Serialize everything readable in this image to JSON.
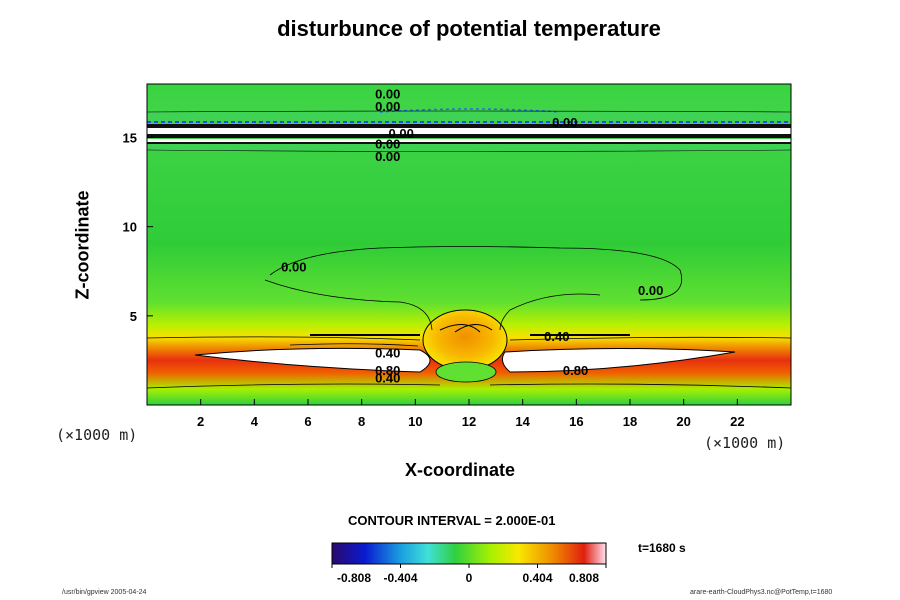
{
  "title": "disturbunce of potential temperature",
  "chart_data": {
    "type": "heatmap",
    "title": "disturbunce of potential temperature",
    "xlabel": "X-coordinate",
    "ylabel": "Z-coordinate",
    "x_unit": "(×1000 m)",
    "z_unit": "(×1000 m)",
    "xlim": [
      0,
      24
    ],
    "ylim": [
      0,
      18
    ],
    "x_ticks": [
      2,
      4,
      6,
      8,
      10,
      12,
      14,
      16,
      18,
      20,
      22
    ],
    "y_ticks": [
      5,
      10,
      15
    ],
    "contour_interval": "CONTOUR INTERVAL = 2.000E-01",
    "contour_labels": [
      {
        "x": 8.5,
        "z": 17.4,
        "text": "0.00"
      },
      {
        "x": 8.5,
        "z": 16.7,
        "text": "0.00"
      },
      {
        "x": 15.1,
        "z": 15.8,
        "text": "0.00"
      },
      {
        "x": 9.0,
        "z": 15.2,
        "text": "0.00"
      },
      {
        "x": 8.5,
        "z": 14.6,
        "text": "0.00"
      },
      {
        "x": 8.5,
        "z": 13.9,
        "text": "0.00"
      },
      {
        "x": 5.0,
        "z": 7.7,
        "text": "0.00"
      },
      {
        "x": 18.3,
        "z": 6.4,
        "text": "0.00"
      },
      {
        "x": 14.8,
        "z": 3.8,
        "text": "0.40"
      },
      {
        "x": 8.5,
        "z": 2.9,
        "text": "0.40"
      },
      {
        "x": 8.5,
        "z": 1.9,
        "text": "0.80"
      },
      {
        "x": 8.5,
        "z": 1.5,
        "text": "0.40"
      },
      {
        "x": 15.5,
        "z": 1.9,
        "text": "0.80"
      }
    ],
    "colorbar": {
      "min": -0.808,
      "max": 0.808,
      "tick_labels": [
        "-0.808",
        "-0.404",
        "0",
        "0.404",
        "0.808"
      ],
      "tick_values": [
        -0.808,
        -0.404,
        0,
        0.404,
        0.808
      ],
      "colormap": [
        "#2a0a6e",
        "#0a1ad0",
        "#1a9ee0",
        "#40e0d8",
        "#30d040",
        "#a8f000",
        "#f8e800",
        "#f09000",
        "#e02010",
        "#ffffff"
      ]
    }
  },
  "time_label": "t=1680 s",
  "footer_left": "/usr/bin/gpview 2005-04-24",
  "footer_right": "arare-earth-CloudPhys3.nc@PotTemp,t=1680"
}
